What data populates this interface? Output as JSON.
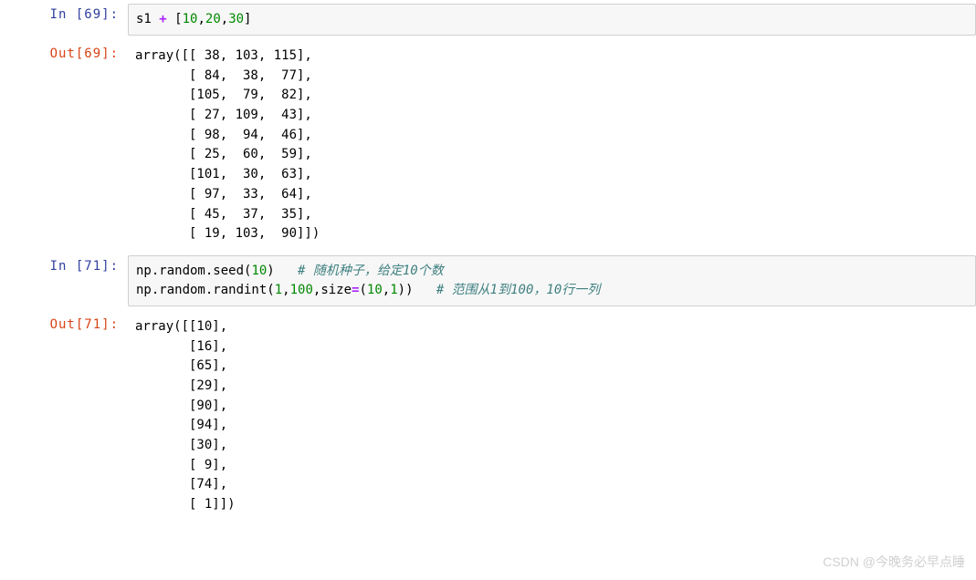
{
  "cells": [
    {
      "type": "code",
      "exec_count": 69,
      "in_prompt": "In  [69]:",
      "out_prompt": "Out[69]:",
      "source_tokens": [
        {
          "t": "s1 ",
          "c": "tok-var"
        },
        {
          "t": "+",
          "c": "tok-op"
        },
        {
          "t": " [",
          "c": "tok-punct"
        },
        {
          "t": "10",
          "c": "tok-num"
        },
        {
          "t": ",",
          "c": "tok-punct"
        },
        {
          "t": "20",
          "c": "tok-num"
        },
        {
          "t": ",",
          "c": "tok-punct"
        },
        {
          "t": "30",
          "c": "tok-num"
        },
        {
          "t": "]",
          "c": "tok-punct"
        }
      ],
      "output": "array([[ 38, 103, 115],\n       [ 84,  38,  77],\n       [105,  79,  82],\n       [ 27, 109,  43],\n       [ 98,  94,  46],\n       [ 25,  60,  59],\n       [101,  30,  63],\n       [ 97,  33,  64],\n       [ 45,  37,  35],\n       [ 19, 103,  90]])"
    },
    {
      "type": "code",
      "exec_count": 71,
      "in_prompt": "In  [71]:",
      "out_prompt": "Out[71]:",
      "source_tokens": [
        {
          "t": "np.random.seed(",
          "c": "tok-fn"
        },
        {
          "t": "10",
          "c": "tok-num"
        },
        {
          "t": ")   ",
          "c": "tok-punct"
        },
        {
          "t": "# 随机种子，给定10个数",
          "c": "tok-comment"
        },
        {
          "t": "\n",
          "c": ""
        },
        {
          "t": "np.random.randint(",
          "c": "tok-fn"
        },
        {
          "t": "1",
          "c": "tok-num"
        },
        {
          "t": ",",
          "c": "tok-punct"
        },
        {
          "t": "100",
          "c": "tok-num"
        },
        {
          "t": ",size",
          "c": "tok-fn"
        },
        {
          "t": "=",
          "c": "tok-op"
        },
        {
          "t": "(",
          "c": "tok-punct"
        },
        {
          "t": "10",
          "c": "tok-num"
        },
        {
          "t": ",",
          "c": "tok-punct"
        },
        {
          "t": "1",
          "c": "tok-num"
        },
        {
          "t": "))   ",
          "c": "tok-punct"
        },
        {
          "t": "# 范围从1到100，10行一列",
          "c": "tok-comment"
        }
      ],
      "output": "array([[10],\n       [16],\n       [65],\n       [29],\n       [90],\n       [94],\n       [30],\n       [ 9],\n       [74],\n       [ 1]])"
    }
  ],
  "watermark": "CSDN @今晚务必早点睡"
}
